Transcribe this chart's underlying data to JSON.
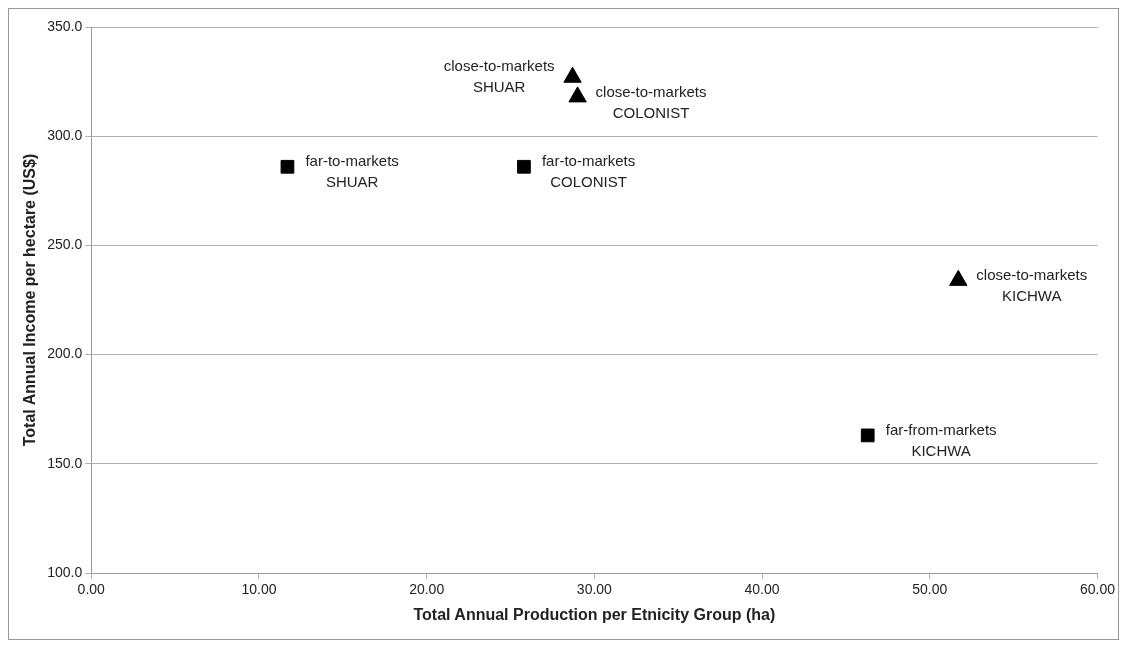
{
  "chart_data": {
    "type": "scatter",
    "xlabel": "Total Annual Production per Etnicity Group (ha)",
    "ylabel": "Total Annual Income per hectare (US$)",
    "series": [
      {
        "color": "#000000",
        "marker": "square",
        "x": [
          11.7,
          25.8,
          46.3
        ],
        "values": [
          286,
          286,
          163
        ]
      },
      {
        "color": "#000000",
        "marker": "triangle",
        "x": [
          28.7,
          29.0,
          51.7
        ],
        "values": [
          327,
          318,
          234
        ]
      }
    ],
    "xlim": [
      0,
      60
    ],
    "xticks": [
      {
        "value": 0,
        "label": "0.00"
      },
      {
        "value": 10,
        "label": "10.00"
      },
      {
        "value": 20,
        "label": "20.00"
      },
      {
        "value": 30,
        "label": "30.00"
      },
      {
        "value": 40,
        "label": "40.00"
      },
      {
        "value": 50,
        "label": "50.00"
      },
      {
        "value": 60,
        "label": "60.00"
      }
    ],
    "ylim": [
      100,
      350
    ],
    "yticks": [
      {
        "value": 100,
        "label": "100.0"
      },
      {
        "value": 150,
        "label": "150.0"
      },
      {
        "value": 200,
        "label": "200.0"
      },
      {
        "value": 250,
        "label": "250.0"
      },
      {
        "value": 300,
        "label": "300.0"
      },
      {
        "value": 350,
        "label": "350.0"
      }
    ],
    "grid": "y",
    "legend": false,
    "annotations": [
      {
        "text": "far-to-markets\nSHUAR",
        "x": 11.7,
        "y": 286
      },
      {
        "text": "far-to-markets\nCOLONIST",
        "x": 25.8,
        "y": 286
      },
      {
        "text": "far-from-markets\nKICHWA",
        "x": 46.3,
        "y": 163
      },
      {
        "text": "close-to-markets\nSHUAR",
        "x": 28.7,
        "y": 327
      },
      {
        "text": "close-to-markets\nCOLONIST",
        "x": 29.0,
        "y": 318
      },
      {
        "text": "close-to-markets\nKICHWA",
        "x": 51.7,
        "y": 234
      }
    ]
  }
}
